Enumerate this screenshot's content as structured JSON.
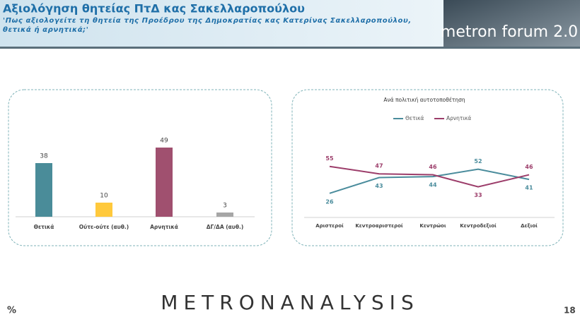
{
  "header": {
    "title": "Αξιολόγηση θητείας ΠτΔ κας Σακελλαροπούλου",
    "question": "'Πως αξιολογείτε τη θητεία της Προέδρου της Δημοκρατίας κας Κατερίνας Σακελλαροπούλου, θετικά ή αρνητικά;'",
    "logo": "metron forum 2.0"
  },
  "footer": {
    "unit": "%",
    "brand": "METRONANALYSIS",
    "page": "18"
  },
  "chart_data": [
    {
      "type": "bar",
      "categories": [
        "Θετικά",
        "Ούτε-ούτε (αυθ.)",
        "Αρνητικά",
        "ΔΓ/ΔΑ (αυθ.)"
      ],
      "values": [
        38,
        10,
        49,
        3
      ],
      "colors": [
        "#4a8c99",
        "#ffc93c",
        "#a0506f",
        "#a6a6a6"
      ],
      "ylim": [
        0,
        60
      ]
    },
    {
      "type": "line",
      "title": "Ανά πολιτική αυτοτοποθέτηση",
      "categories": [
        "Αριστεροί",
        "Κεντροαριστεροί",
        "Κεντρώοι",
        "Κεντροδεξιοί",
        "Δεξιοί"
      ],
      "series": [
        {
          "name": "Θετικά",
          "color": "#4a8c9c",
          "values": [
            26,
            43,
            44,
            52,
            41
          ]
        },
        {
          "name": "Αρνητικά",
          "color": "#9c3d6a",
          "values": [
            55,
            47,
            46,
            33,
            46
          ]
        }
      ],
      "ylim": [
        0,
        70
      ]
    }
  ]
}
